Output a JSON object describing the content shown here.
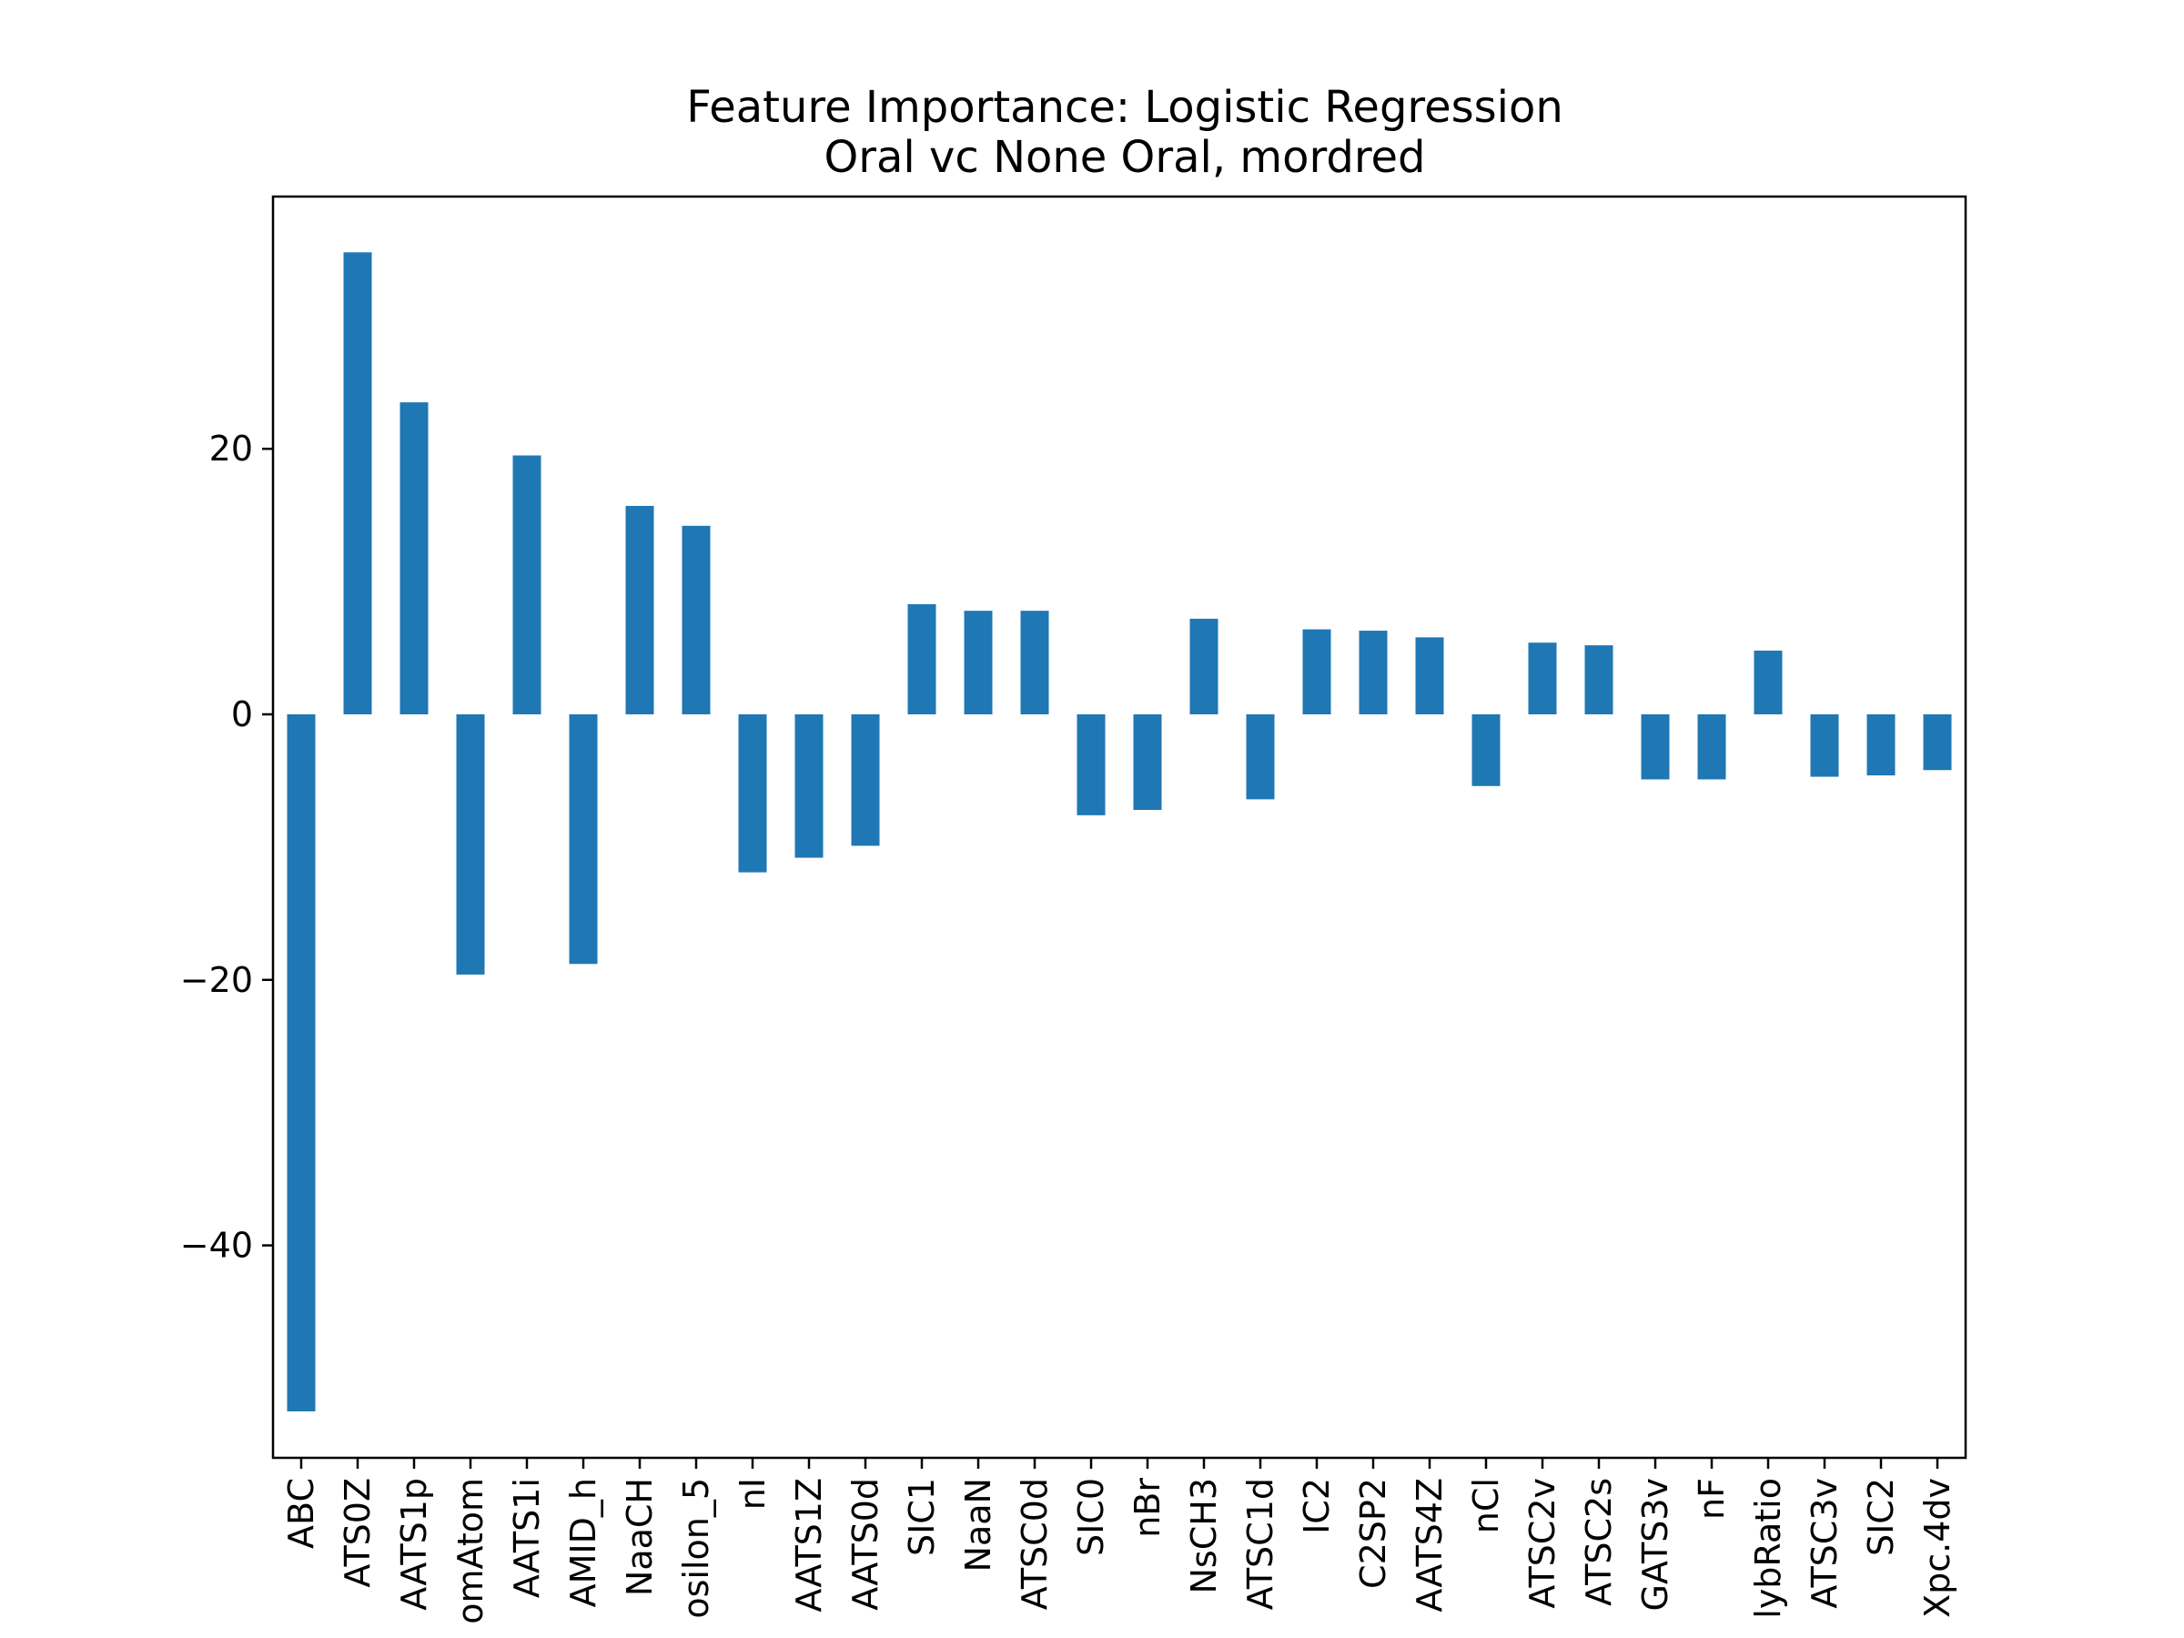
{
  "chart_data": {
    "type": "bar",
    "title": "Feature Importance: Logistic Regression",
    "subtitle": "Oral vc None Oral, mordred",
    "xlabel": "",
    "ylabel": "",
    "color": "#1f77b4",
    "grid": false,
    "legend": "none",
    "categories": [
      "ABC",
      "ATS0Z",
      "AATS1p",
      "omAtom",
      "AATS1i",
      "AMID_h",
      "NaaCH",
      "osilon_5",
      "nI",
      "AATS1Z",
      "AATS0d",
      "SIC1",
      "NaaN",
      "ATSC0d",
      "SIC0",
      "nBr",
      "NsCH3",
      "ATSC1d",
      "IC2",
      "C2SP2",
      "AATS4Z",
      "nCl",
      "ATSC2v",
      "ATSC2s",
      "GATS3v",
      "nF",
      "lybRatio",
      "ATSC3v",
      "SIC2",
      "Xpc.4dv"
    ],
    "values": [
      -52.5,
      34.8,
      23.5,
      -19.6,
      19.5,
      -18.8,
      15.7,
      14.2,
      -11.9,
      -10.8,
      -9.9,
      8.3,
      7.8,
      7.8,
      -7.6,
      -7.2,
      7.2,
      -6.4,
      6.4,
      6.3,
      5.8,
      -5.4,
      5.4,
      5.2,
      -4.9,
      -4.9,
      4.8,
      -4.7,
      -4.6,
      -4.2
    ],
    "yticks": [
      -40,
      -20,
      0,
      20
    ],
    "ytick_labels": [
      "−40",
      "−20",
      "0",
      "20"
    ],
    "ylim": [
      -56.0,
      39.0
    ]
  }
}
